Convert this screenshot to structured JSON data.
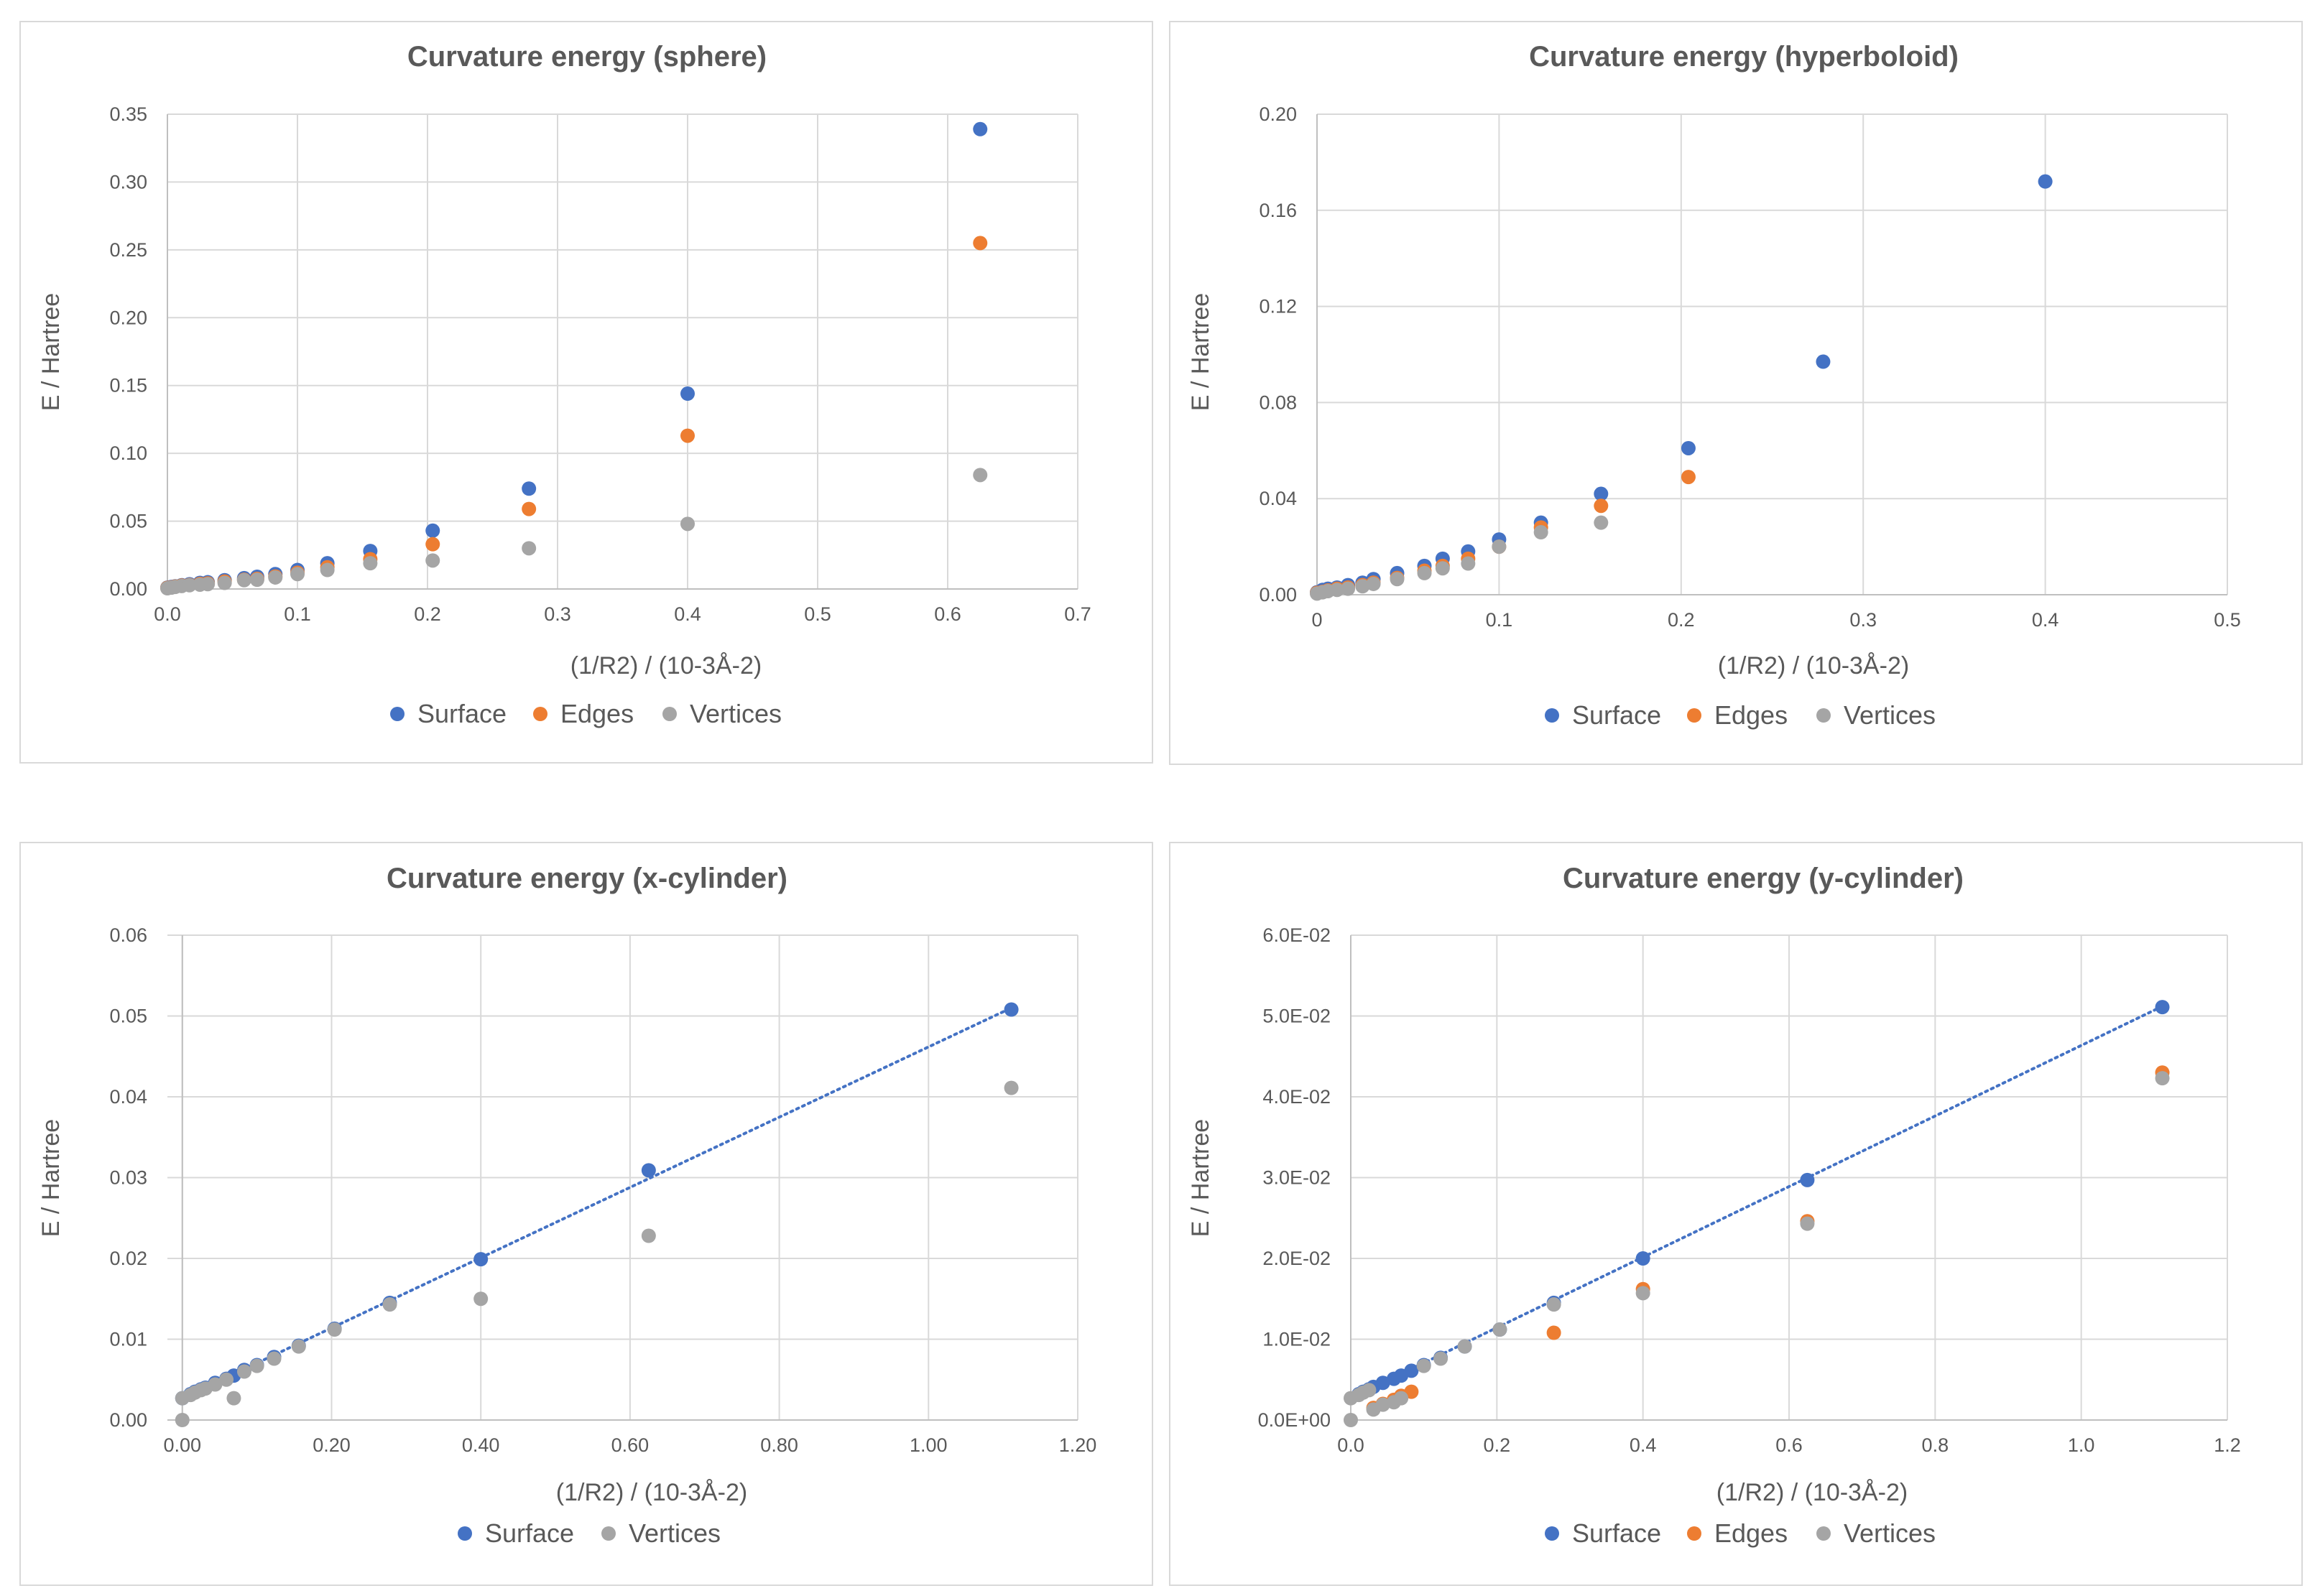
{
  "chart_data": [
    {
      "type": "scatter",
      "title": "Curvature energy (sphere)",
      "xlabel": "(1/R2) / (10-3Å-2)",
      "ylabel": "E / Hartree",
      "xlim": [
        0,
        0.7
      ],
      "ylim": [
        0,
        0.35
      ],
      "xticks": [
        0,
        0.1,
        0.2,
        0.3,
        0.4,
        0.5,
        0.6,
        0.7
      ],
      "xtick_labels": [
        "0.0",
        "0.1",
        "0.2",
        "0.3",
        "0.4",
        "0.5",
        "0.6",
        "0.7"
      ],
      "yticks": [
        0,
        0.05,
        0.1,
        0.15,
        0.2,
        0.25,
        0.3,
        0.35
      ],
      "ytick_labels": [
        "0.00",
        "0.05",
        "0.10",
        "0.15",
        "0.20",
        "0.25",
        "0.30",
        "0.35"
      ],
      "legend": "bottom",
      "series": [
        {
          "name": "Surface",
          "color": "#4472C4",
          "x": [
            0,
            0.003,
            0.006,
            0.011,
            0.017,
            0.025,
            0.031,
            0.044,
            0.059,
            0.069,
            0.083,
            0.1,
            0.123,
            0.156,
            0.204,
            0.278,
            0.4,
            0.625
          ],
          "y": [
            0.001,
            0.0015,
            0.002,
            0.0028,
            0.0035,
            0.0045,
            0.005,
            0.0065,
            0.008,
            0.009,
            0.011,
            0.014,
            0.019,
            0.028,
            0.043,
            0.074,
            0.144,
            0.339
          ]
        },
        {
          "name": "Edges",
          "color": "#ED7D31",
          "x": [
            0,
            0.003,
            0.006,
            0.011,
            0.017,
            0.025,
            0.031,
            0.044,
            0.059,
            0.069,
            0.083,
            0.1,
            0.123,
            0.156,
            0.204,
            0.278,
            0.4,
            0.625
          ],
          "y": [
            0.0008,
            0.0012,
            0.0018,
            0.0025,
            0.003,
            0.0038,
            0.0042,
            0.0055,
            0.0068,
            0.0075,
            0.0092,
            0.012,
            0.016,
            0.022,
            0.033,
            0.059,
            0.113,
            0.255
          ]
        },
        {
          "name": "Vertices",
          "color": "#A5A5A5",
          "x": [
            0,
            0.003,
            0.006,
            0.011,
            0.017,
            0.025,
            0.031,
            0.044,
            0.059,
            0.069,
            0.083,
            0.1,
            0.123,
            0.156,
            0.204,
            0.278,
            0.4,
            0.625
          ],
          "y": [
            0.0005,
            0.001,
            0.0015,
            0.0022,
            0.0028,
            0.0032,
            0.0036,
            0.0045,
            0.0065,
            0.0068,
            0.0085,
            0.011,
            0.014,
            0.019,
            0.021,
            0.03,
            0.048,
            0.084
          ]
        }
      ]
    },
    {
      "type": "scatter",
      "title": "Curvature energy (hyperboloid)",
      "xlabel": "(1/R2) / (10-3Å-2)",
      "ylabel": "E / Hartree",
      "xlim": [
        0,
        0.5
      ],
      "ylim": [
        0,
        0.2
      ],
      "xticks": [
        0,
        0.1,
        0.2,
        0.3,
        0.4,
        0.5
      ],
      "xtick_labels": [
        "0",
        "0.1",
        "0.2",
        "0.3",
        "0.4",
        "0.5"
      ],
      "yticks": [
        0,
        0.04,
        0.08,
        0.12,
        0.16,
        0.2
      ],
      "ytick_labels": [
        "0.00",
        "0.04",
        "0.08",
        "0.12",
        "0.16",
        "0.20"
      ],
      "legend": "bottom",
      "series": [
        {
          "name": "Surface",
          "color": "#4472C4",
          "x": [
            0,
            0.003,
            0.006,
            0.011,
            0.017,
            0.025,
            0.031,
            0.044,
            0.059,
            0.069,
            0.083,
            0.1,
            0.123,
            0.156,
            0.204,
            0.278,
            0.4
          ],
          "y": [
            0.001,
            0.002,
            0.0025,
            0.003,
            0.004,
            0.005,
            0.0065,
            0.009,
            0.012,
            0.015,
            0.018,
            0.023,
            0.03,
            0.042,
            0.061,
            0.097,
            0.172
          ]
        },
        {
          "name": "Edges",
          "color": "#ED7D31",
          "x": [
            0,
            0.003,
            0.006,
            0.011,
            0.017,
            0.025,
            0.031,
            0.044,
            0.059,
            0.069,
            0.083,
            0.1,
            0.123,
            0.156,
            0.204
          ],
          "y": [
            0.0008,
            0.0012,
            0.0018,
            0.0025,
            0.003,
            0.004,
            0.005,
            0.007,
            0.01,
            0.012,
            0.015,
            0.02,
            0.028,
            0.037,
            0.049
          ]
        },
        {
          "name": "Vertices",
          "color": "#A5A5A5",
          "x": [
            0,
            0.003,
            0.006,
            0.011,
            0.017,
            0.025,
            0.031,
            0.044,
            0.059,
            0.069,
            0.083,
            0.1,
            0.123,
            0.156
          ],
          "y": [
            0.0005,
            0.001,
            0.0015,
            0.002,
            0.0025,
            0.0035,
            0.0045,
            0.0065,
            0.009,
            0.011,
            0.013,
            0.02,
            0.026,
            0.03
          ]
        }
      ]
    },
    {
      "type": "scatter",
      "title": "Curvature energy  (x-cylinder)",
      "xlabel": "(1/R2) / (10-3Å-2)",
      "ylabel": "E / Hartree",
      "xlim": [
        -0.02,
        1.2
      ],
      "ylim": [
        0,
        0.06
      ],
      "xticks": [
        0,
        0.2,
        0.4,
        0.6,
        0.8,
        1.0,
        1.2
      ],
      "xtick_labels": [
        "0.00",
        "0.20",
        "0.40",
        "0.60",
        "0.80",
        "1.00",
        "1.20"
      ],
      "yticks": [
        0,
        0.01,
        0.02,
        0.03,
        0.04,
        0.05,
        0.06
      ],
      "ytick_labels": [
        "0.00",
        "0.01",
        "0.02",
        "0.03",
        "0.04",
        "0.05",
        "0.06"
      ],
      "legend": "bottom",
      "trendline": {
        "series": "Surface",
        "x": [
          0,
          1.111
        ],
        "y": [
          0.0027,
          0.051
        ],
        "color": "#4472C4"
      },
      "series": [
        {
          "name": "Surface",
          "color": "#4472C4",
          "x": [
            0,
            0.011,
            0.017,
            0.025,
            0.031,
            0.044,
            0.059,
            0.069,
            0.083,
            0.1,
            0.123,
            0.156,
            0.204,
            0.278,
            0.4,
            0.625,
            1.111
          ],
          "y": [
            0.0027,
            0.0032,
            0.0035,
            0.0038,
            0.004,
            0.0046,
            0.0051,
            0.0055,
            0.0062,
            0.0068,
            0.0078,
            0.0092,
            0.0113,
            0.0145,
            0.0199,
            0.0309,
            0.0508
          ]
        },
        {
          "name": "Vertices",
          "color": "#A5A5A5",
          "x": [
            0,
            0,
            0.011,
            0.017,
            0.025,
            0.031,
            0.044,
            0.059,
            0.069,
            0.083,
            0.1,
            0.123,
            0.156,
            0.204,
            0.278,
            0.4,
            0.625,
            1.111
          ],
          "y": [
            0,
            0.0027,
            0.0031,
            0.0034,
            0.0037,
            0.0039,
            0.0044,
            0.005,
            0.0027,
            0.006,
            0.0067,
            0.0076,
            0.0091,
            0.0112,
            0.0143,
            0.015,
            0.0228,
            0.0411
          ]
        }
      ]
    },
    {
      "type": "scatter",
      "title": "Curvature energy (y-cylinder)",
      "xlabel": "(1/R2) / (10-3Å-2)",
      "ylabel": "E / Hartree",
      "xlim": [
        0,
        1.2
      ],
      "ylim": [
        0,
        0.06
      ],
      "xticks": [
        0,
        0.2,
        0.4,
        0.6,
        0.8,
        1.0,
        1.2
      ],
      "xtick_labels": [
        "0.0",
        "0.2",
        "0.4",
        "0.6",
        "0.8",
        "1.0",
        "1.2"
      ],
      "yticks": [
        0,
        0.01,
        0.02,
        0.03,
        0.04,
        0.05,
        0.06
      ],
      "ytick_labels": [
        "0.0E+00",
        "1.0E-02",
        "2.0E-02",
        "3.0E-02",
        "4.0E-02",
        "5.0E-02",
        "6.0E-02"
      ],
      "legend": "bottom",
      "trendline": {
        "series": "Surface",
        "x": [
          0,
          1.111
        ],
        "y": [
          0.0027,
          0.0512
        ],
        "color": "#4472C4"
      },
      "series": [
        {
          "name": "Surface",
          "color": "#4472C4",
          "x": [
            0.011,
            0.017,
            0.025,
            0.031,
            0.044,
            0.059,
            0.069,
            0.083,
            0.1,
            0.123,
            0.156,
            0.204,
            0.278,
            0.4,
            0.625,
            1.111
          ],
          "y": [
            0.0032,
            0.0035,
            0.0038,
            0.0041,
            0.0046,
            0.0051,
            0.0055,
            0.0061,
            0.0068,
            0.0077,
            0.0091,
            0.0112,
            0.0145,
            0.02,
            0.0297,
            0.0511
          ]
        },
        {
          "name": "Edges",
          "color": "#ED7D31",
          "x": [
            0.031,
            0.044,
            0.059,
            0.069,
            0.083,
            0.278,
            0.4,
            0.625,
            1.111
          ],
          "y": [
            0.0015,
            0.002,
            0.0025,
            0.003,
            0.0035,
            0.0108,
            0.0162,
            0.0246,
            0.043
          ]
        },
        {
          "name": "Vertices",
          "color": "#A5A5A5",
          "x": [
            0,
            0,
            0.011,
            0.017,
            0.025,
            0.031,
            0.044,
            0.059,
            0.069,
            0.1,
            0.123,
            0.156,
            0.204,
            0.278,
            0.4,
            0.625,
            1.111
          ],
          "y": [
            0,
            0.0027,
            0.0031,
            0.0034,
            0.0037,
            0.0013,
            0.0019,
            0.0022,
            0.0027,
            0.0067,
            0.0076,
            0.0091,
            0.0112,
            0.0143,
            0.0157,
            0.0243,
            0.0423
          ]
        }
      ]
    }
  ]
}
